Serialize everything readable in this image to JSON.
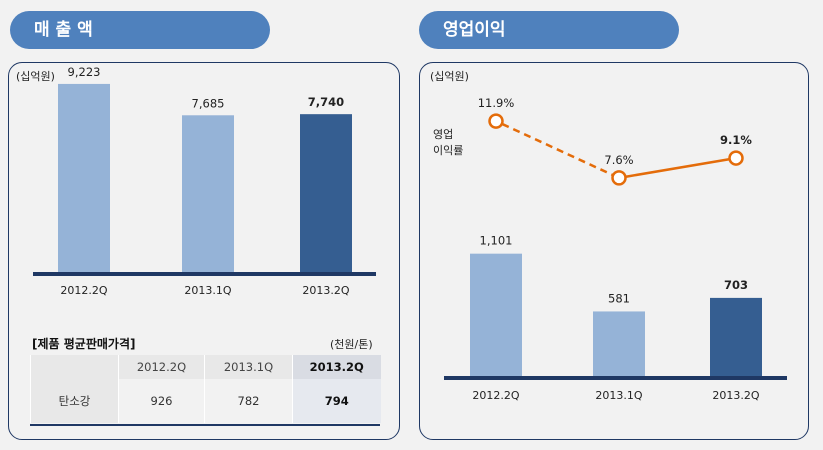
{
  "headers": {
    "sales": "매 출 액",
    "op_profit": "영업이익"
  },
  "units": {
    "sales": "(십억원)",
    "op_profit": "(십억원)",
    "price": "(천원/톤)"
  },
  "price_table": {
    "title": "[제품 평균판매가격]",
    "columns": [
      "2012.2Q",
      "2013.1Q",
      "2013.2Q"
    ],
    "row_label": "탄소강",
    "values": [
      "926",
      "782",
      "794"
    ]
  },
  "colors": {
    "pill": "#4f81bd",
    "light_bar": "#95b3d7",
    "dark_bar": "#355e91",
    "baseline": "#1f3864",
    "line": "#e46c0a"
  },
  "chart_data": [
    {
      "type": "bar",
      "title": "매 출 액",
      "ylabel": "(십억원)",
      "categories": [
        "2012.2Q",
        "2013.1Q",
        "2013.2Q"
      ],
      "values": [
        9223,
        7685,
        7740
      ],
      "labels": [
        "9,223",
        "7,685",
        "7,740"
      ],
      "ylim": [
        0,
        10200
      ]
    },
    {
      "type": "bar+line",
      "title": "영업이익",
      "ylabel": "(십억원)",
      "categories": [
        "2012.2Q",
        "2013.1Q",
        "2013.2Q"
      ],
      "values": [
        1101,
        581,
        703
      ],
      "labels": [
        "1,101",
        "581",
        "703"
      ],
      "ylim": [
        0,
        1260
      ],
      "line": {
        "name": "영업\n이익률",
        "name_lines": [
          "영업",
          "이익률"
        ],
        "values": [
          11.9,
          7.6,
          9.1
        ],
        "labels": [
          "11.9%",
          "7.6%",
          "9.1%"
        ],
        "ylim": [
          6,
          13
        ]
      }
    }
  ]
}
